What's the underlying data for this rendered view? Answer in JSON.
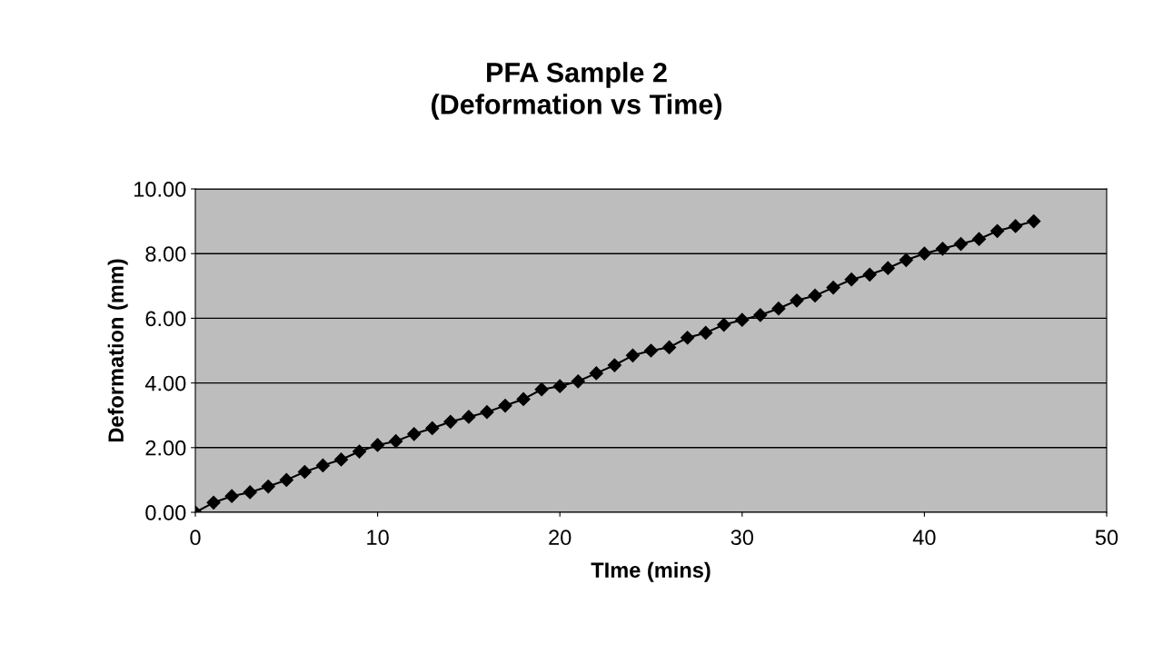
{
  "chart_data": {
    "type": "line",
    "title": "PFA Sample 2\n(Deformation vs Time)",
    "xlabel": "TIme (mins)",
    "ylabel": "Deformation (mm)",
    "x": [
      0,
      1,
      2,
      3,
      4,
      5,
      6,
      7,
      8,
      9,
      10,
      11,
      12,
      13,
      14,
      15,
      16,
      17,
      18,
      19,
      20,
      21,
      22,
      23,
      24,
      25,
      26,
      27,
      28,
      29,
      30,
      31,
      32,
      33,
      34,
      35,
      36,
      37,
      38,
      39,
      40,
      41,
      42,
      43,
      44,
      45,
      46
    ],
    "series": [
      {
        "color": "#000000",
        "values": [
          0.0,
          0.3,
          0.5,
          0.62,
          0.8,
          1.0,
          1.25,
          1.45,
          1.63,
          1.88,
          2.08,
          2.2,
          2.42,
          2.6,
          2.8,
          2.95,
          3.1,
          3.3,
          3.5,
          3.8,
          3.9,
          4.05,
          4.3,
          4.55,
          4.85,
          5.0,
          5.1,
          5.4,
          5.55,
          5.8,
          5.95,
          6.1,
          6.3,
          6.55,
          6.7,
          6.95,
          7.2,
          7.35,
          7.55,
          7.8,
          8.0,
          8.15,
          8.3,
          8.45,
          8.7,
          8.85,
          9.0
        ]
      }
    ],
    "xlim": [
      0,
      50
    ],
    "xticks": [
      0,
      10,
      20,
      30,
      40,
      50
    ],
    "ylim": [
      0,
      10
    ],
    "yticks": [
      {
        "value": 0,
        "label": "0.00"
      },
      {
        "value": 2,
        "label": "2.00"
      },
      {
        "value": 4,
        "label": "4.00"
      },
      {
        "value": 6,
        "label": "6.00"
      },
      {
        "value": 8,
        "label": "8.00"
      },
      {
        "value": 10,
        "label": "10.00"
      }
    ],
    "grid": "y",
    "marker": "diamond",
    "line_style": "solid",
    "legend": false
  }
}
